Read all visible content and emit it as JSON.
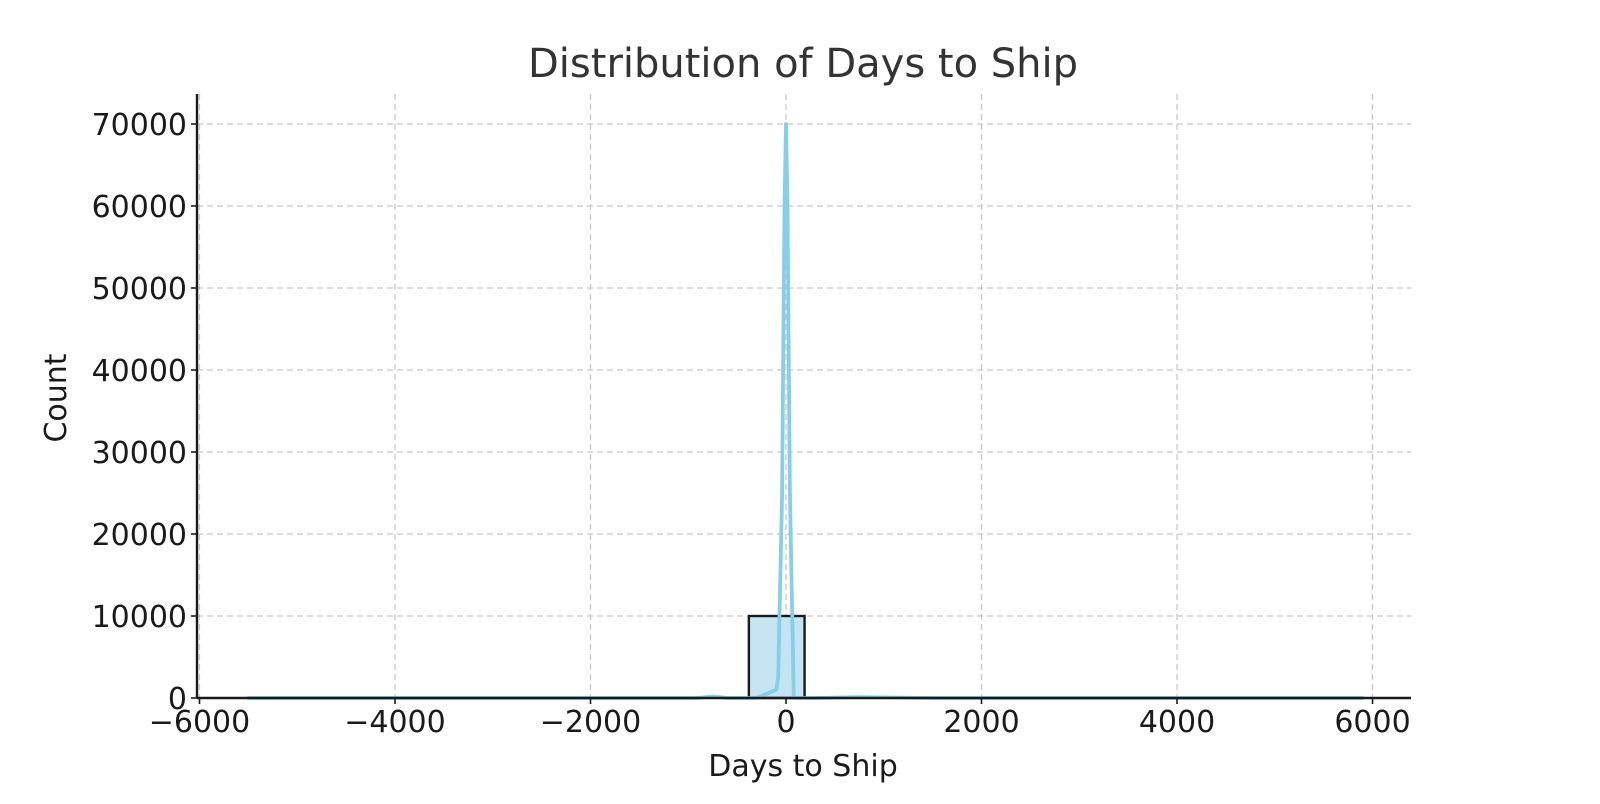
{
  "chart_data": {
    "type": "bar",
    "title": "Distribution of Days to Ship",
    "xlabel": "Days to Ship",
    "ylabel": "Count",
    "xlim": [
      -6100,
      6400
    ],
    "ylim": [
      0,
      73500
    ],
    "xticks": [
      -6000,
      -4000,
      -2000,
      0,
      2000,
      4000,
      6000
    ],
    "xtick_labels": [
      "−6000",
      "−4000",
      "−2000",
      "0",
      "2000",
      "4000",
      "6000"
    ],
    "yticks": [
      0,
      10000,
      20000,
      30000,
      40000,
      50000,
      60000,
      70000
    ],
    "ytick_labels": [
      "0",
      "10000",
      "20000",
      "30000",
      "40000",
      "50000",
      "60000",
      "70000"
    ],
    "grid": true,
    "bars": [
      {
        "x0": -380,
        "x1": 190,
        "count": 10000
      }
    ],
    "kde": {
      "x": [
        -5500,
        -3000,
        -1500,
        -900,
        -750,
        -600,
        -300,
        -100,
        -80,
        -40,
        -15,
        0,
        15,
        40,
        80,
        300,
        750,
        1500,
        3000,
        5900
      ],
      "y": [
        0,
        0,
        0,
        0,
        200,
        0,
        0,
        1000,
        2500,
        25000,
        60000,
        70000,
        60000,
        25000,
        0,
        0,
        100,
        0,
        0,
        0
      ]
    },
    "colors": {
      "bar_fill": "#c3e4f0",
      "bar_edge": "#1a1a1a",
      "kde_line": "#87ceeb",
      "grid": "#c8c8c8",
      "axis": "#1a1a1a",
      "title": "#333333"
    }
  }
}
